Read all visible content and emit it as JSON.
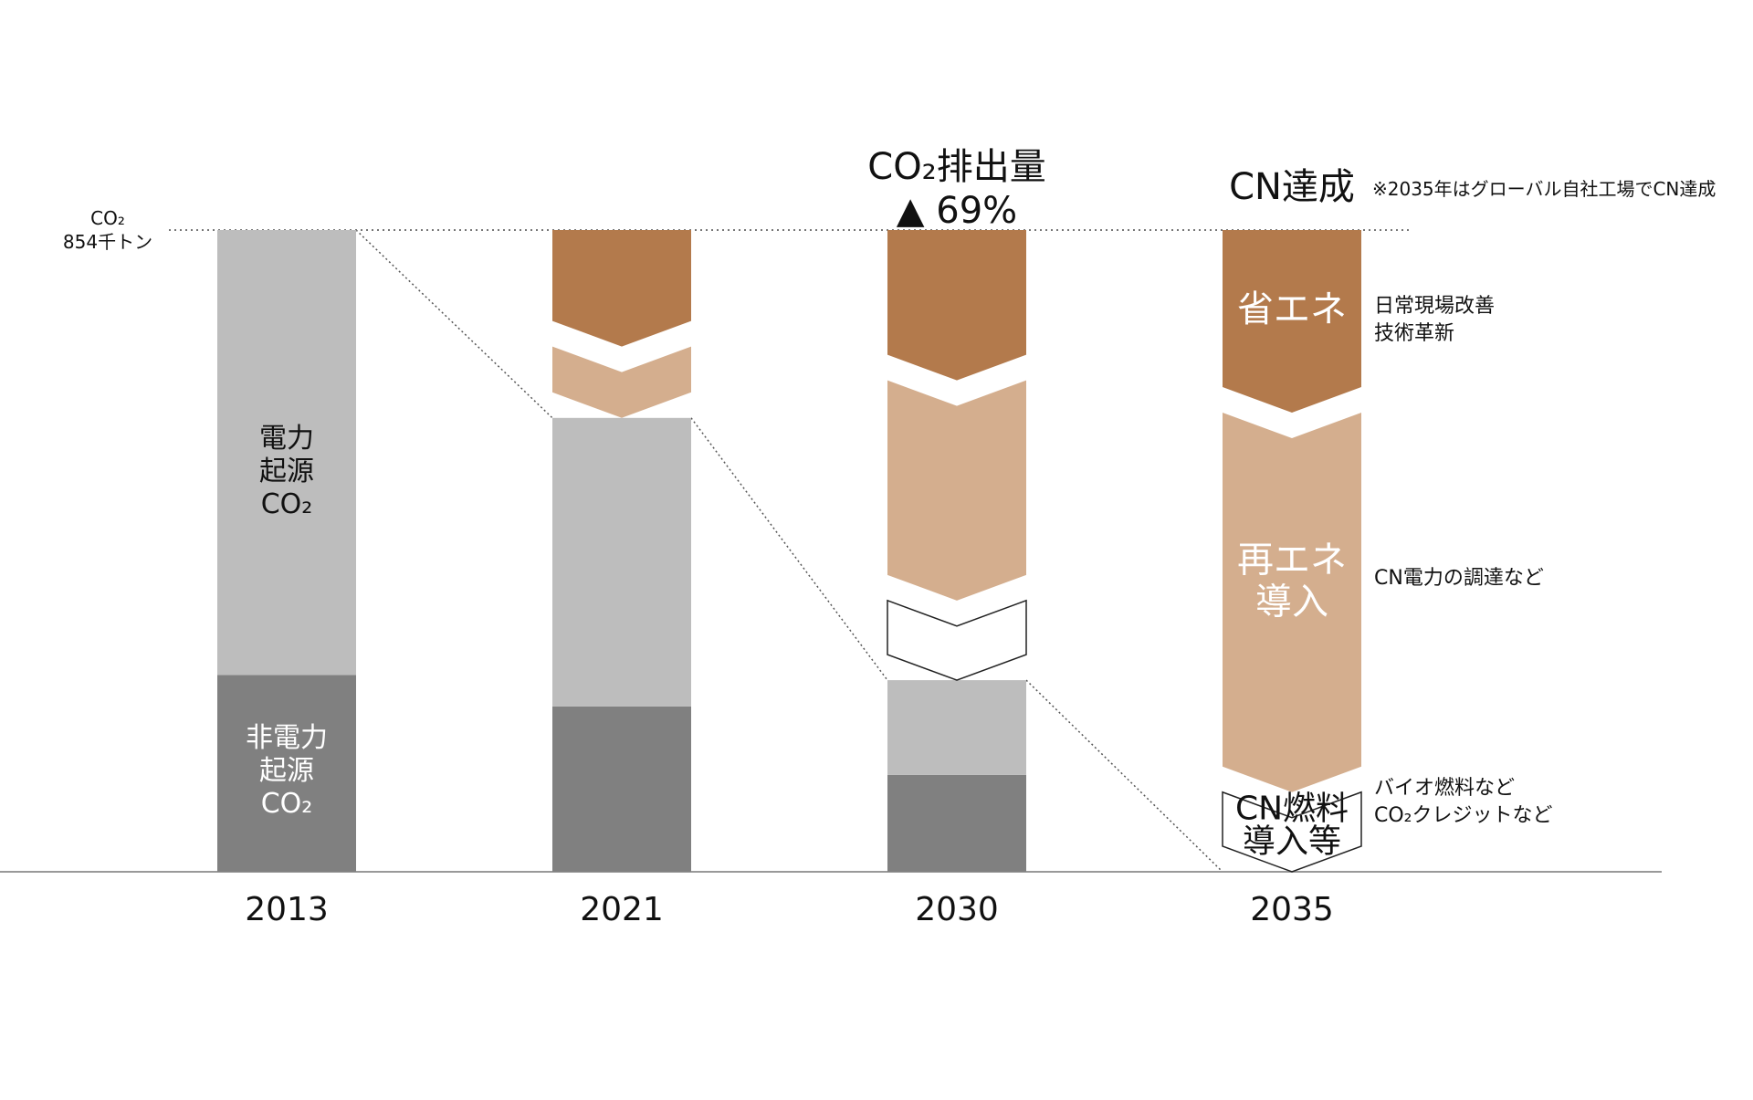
{
  "colors": {
    "non_power": "#808080",
    "power": "#bdbdbd",
    "energy_saving": "#b37a4c",
    "renewable": "#d4ae8e",
    "cn_fuel": "#ffffff",
    "baseline": "#999999"
  },
  "chart_data": {
    "type": "bar",
    "categories": [
      "2013",
      "2021",
      "2030",
      "2035"
    ],
    "unit_label": "CO₂\n854千トン",
    "baseline_value": 854,
    "series": [
      {
        "key": "non_power",
        "name": "非電力起源CO₂",
        "values": [
          262,
          220,
          129,
          0
        ]
      },
      {
        "key": "power",
        "name": "電力起源CO₂",
        "values": [
          592,
          384,
          126,
          0
        ]
      },
      {
        "key": "cn_fuel",
        "name": "CN燃料導入等",
        "values": [
          0,
          0,
          106,
          106
        ]
      },
      {
        "key": "renewable",
        "name": "再エネ導入",
        "values": [
          0,
          95,
          293,
          505
        ]
      },
      {
        "key": "energy_saving",
        "name": "省エネ",
        "values": [
          0,
          155,
          200,
          243
        ]
      }
    ],
    "labels": {
      "bar_2013_power": [
        "電力",
        "起源",
        "CO₂"
      ],
      "bar_2013_nonpower": [
        "非電力",
        "起源",
        "CO₂"
      ],
      "bar_2035_saving": "省エネ",
      "bar_2035_renew": [
        "再エネ",
        "導入"
      ],
      "bar_2035_fuel": [
        "CN燃料",
        "導入等"
      ]
    },
    "annotations": {
      "emission_title": "CO₂排出量",
      "reduction": "▲ 69%",
      "cn_title": "CN達成",
      "cn_note": "※2035年はグローバル自社工場でCN達成",
      "saving_desc": [
        "日常現場改善",
        "技術革新"
      ],
      "renew_desc": "CN電力の調達など",
      "fuel_desc": [
        "バイオ燃料など",
        "CO₂クレジットなど"
      ]
    }
  }
}
